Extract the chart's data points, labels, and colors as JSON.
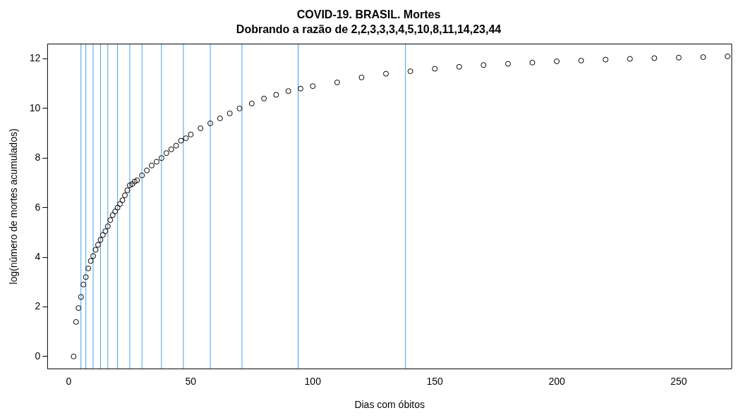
{
  "chart_data": {
    "type": "scatter",
    "title": "COVID-19. BRASIL. Mortes",
    "subtitle": "Dobrando a razão de 2,2,3,3,3,4,5,10,8,11,14,23,44",
    "xlabel": "Dias com óbitos",
    "ylabel": "log(número de mortes acumulados)",
    "marker": "circle",
    "x": [
      2,
      3,
      4,
      5,
      6,
      7,
      8,
      9,
      10,
      11,
      12,
      13,
      14,
      15,
      16,
      17,
      18,
      19,
      20,
      21,
      22,
      23,
      24,
      25,
      26,
      27,
      28,
      30,
      32,
      34,
      36,
      38,
      40,
      42,
      44,
      46,
      48,
      50,
      54,
      58,
      62,
      66,
      70,
      75,
      80,
      85,
      90,
      95,
      100,
      110,
      120,
      130,
      140,
      150,
      160,
      170,
      180,
      190,
      200,
      210,
      220,
      230,
      240,
      250,
      260,
      270
    ],
    "series": [
      {
        "color": "#000000",
        "values": [
          0,
          1.39,
          1.95,
          2.4,
          2.9,
          3.2,
          3.55,
          3.85,
          4.05,
          4.3,
          4.5,
          4.7,
          4.9,
          5.05,
          5.25,
          5.5,
          5.7,
          5.85,
          6.0,
          6.15,
          6.3,
          6.5,
          6.7,
          6.9,
          6.95,
          7.05,
          7.1,
          7.3,
          7.5,
          7.7,
          7.85,
          8.0,
          8.2,
          8.35,
          8.5,
          8.7,
          8.8,
          8.95,
          9.2,
          9.4,
          9.6,
          9.8,
          10.0,
          10.2,
          10.4,
          10.55,
          10.7,
          10.8,
          10.9,
          11.05,
          11.25,
          11.4,
          11.5,
          11.6,
          11.68,
          11.75,
          11.8,
          11.85,
          11.9,
          11.93,
          11.97,
          12.0,
          12.03,
          12.05,
          12.07,
          12.1
        ]
      }
    ],
    "xlim": [
      -8.7,
      271.7
    ],
    "ylim": [
      -0.5,
      12.6
    ],
    "xticks": [
      0,
      50,
      100,
      150,
      200,
      250
    ],
    "yticks": [
      0,
      2,
      4,
      6,
      8,
      10,
      12
    ],
    "ref_lines": [
      {
        "axis": "x",
        "value": 5,
        "color": "#4aa3df"
      },
      {
        "axis": "x",
        "value": 7,
        "color": "#4aa3df"
      },
      {
        "axis": "x",
        "value": 10,
        "color": "#4aa3df"
      },
      {
        "axis": "x",
        "value": 13,
        "color": "#4aa3df"
      },
      {
        "axis": "x",
        "value": 16,
        "color": "#4aa3df"
      },
      {
        "axis": "x",
        "value": 20,
        "color": "#4aa3df"
      },
      {
        "axis": "x",
        "value": 25,
        "color": "#4aa3df"
      },
      {
        "axis": "x",
        "value": 30,
        "color": "#4aa3df"
      },
      {
        "axis": "x",
        "value": 38,
        "color": "#4aa3df"
      },
      {
        "axis": "x",
        "value": 47,
        "color": "#4aa3df"
      },
      {
        "axis": "x",
        "value": 58,
        "color": "#4aa3df"
      },
      {
        "axis": "x",
        "value": 71,
        "color": "#4aa3df"
      },
      {
        "axis": "x",
        "value": 94,
        "color": "#4aa3df"
      },
      {
        "axis": "x",
        "value": 138,
        "color": "#4aa3df"
      }
    ]
  }
}
